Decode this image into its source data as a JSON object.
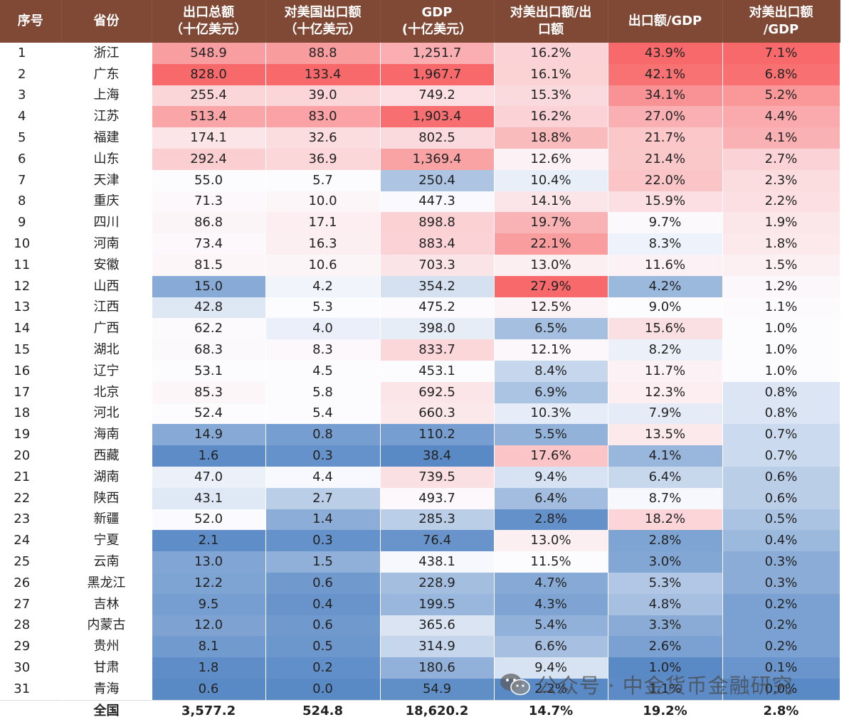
{
  "header": {
    "columns": [
      "序号",
      "省份",
      "出口总额\n（十亿美元）",
      "对美国出口额\n（十亿美元）",
      "GDP\n(十亿美元）",
      "对美出口额/出\n口额",
      "出口额/GDP",
      "对美出口额\n/GDP"
    ],
    "color": "#7f4936"
  },
  "rows": [
    [
      "1",
      "浙江",
      "548.9",
      "88.8",
      "1,251.7",
      "16.2%",
      "43.9%",
      "7.1%"
    ],
    [
      "2",
      "广东",
      "828.0",
      "133.4",
      "1,967.7",
      "16.1%",
      "42.1%",
      "6.8%"
    ],
    [
      "3",
      "上海",
      "255.4",
      "39.0",
      "749.2",
      "15.3%",
      "34.1%",
      "5.2%"
    ],
    [
      "4",
      "江苏",
      "513.4",
      "83.0",
      "1,903.4",
      "16.2%",
      "27.0%",
      "4.4%"
    ],
    [
      "5",
      "福建",
      "174.1",
      "32.6",
      "802.5",
      "18.8%",
      "21.7%",
      "4.1%"
    ],
    [
      "6",
      "山东",
      "292.4",
      "36.9",
      "1,369.4",
      "12.6%",
      "21.4%",
      "2.7%"
    ],
    [
      "7",
      "天津",
      "55.0",
      "5.7",
      "250.4",
      "10.4%",
      "22.0%",
      "2.3%"
    ],
    [
      "8",
      "重庆",
      "71.3",
      "10.0",
      "447.3",
      "14.1%",
      "15.9%",
      "2.2%"
    ],
    [
      "9",
      "四川",
      "86.8",
      "17.1",
      "898.8",
      "19.7%",
      "9.7%",
      "1.9%"
    ],
    [
      "10",
      "河南",
      "73.4",
      "16.3",
      "883.4",
      "22.1%",
      "8.3%",
      "1.8%"
    ],
    [
      "11",
      "安徽",
      "81.5",
      "10.6",
      "703.3",
      "13.0%",
      "11.6%",
      "1.5%"
    ],
    [
      "12",
      "山西",
      "15.0",
      "4.2",
      "354.2",
      "27.9%",
      "4.2%",
      "1.2%"
    ],
    [
      "13",
      "江西",
      "42.8",
      "5.3",
      "475.2",
      "12.5%",
      "9.0%",
      "1.1%"
    ],
    [
      "14",
      "广西",
      "62.2",
      "4.0",
      "398.0",
      "6.5%",
      "15.6%",
      "1.0%"
    ],
    [
      "15",
      "湖北",
      "68.3",
      "8.3",
      "833.7",
      "12.1%",
      "8.2%",
      "1.0%"
    ],
    [
      "16",
      "辽宁",
      "53.1",
      "4.5",
      "453.1",
      "8.4%",
      "11.7%",
      "1.0%"
    ],
    [
      "17",
      "北京",
      "85.3",
      "5.8",
      "692.5",
      "6.9%",
      "12.3%",
      "0.8%"
    ],
    [
      "18",
      "河北",
      "52.4",
      "5.4",
      "660.3",
      "10.3%",
      "7.9%",
      "0.8%"
    ],
    [
      "19",
      "海南",
      "14.9",
      "0.8",
      "110.2",
      "5.5%",
      "13.5%",
      "0.7%"
    ],
    [
      "20",
      "西藏",
      "1.6",
      "0.3",
      "38.4",
      "17.6%",
      "4.1%",
      "0.7%"
    ],
    [
      "21",
      "湖南",
      "47.0",
      "4.4",
      "739.5",
      "9.4%",
      "6.4%",
      "0.6%"
    ],
    [
      "22",
      "陕西",
      "43.1",
      "2.7",
      "493.7",
      "6.4%",
      "8.7%",
      "0.6%"
    ],
    [
      "23",
      "新疆",
      "52.0",
      "1.4",
      "285.3",
      "2.8%",
      "18.2%",
      "0.5%"
    ],
    [
      "24",
      "宁夏",
      "2.1",
      "0.3",
      "76.4",
      "13.0%",
      "2.8%",
      "0.4%"
    ],
    [
      "25",
      "云南",
      "13.0",
      "1.5",
      "438.1",
      "11.5%",
      "3.0%",
      "0.3%"
    ],
    [
      "26",
      "黑龙江",
      "12.2",
      "0.6",
      "228.9",
      "4.7%",
      "5.3%",
      "0.3%"
    ],
    [
      "27",
      "吉林",
      "9.5",
      "0.4",
      "199.5",
      "4.3%",
      "4.8%",
      "0.2%"
    ],
    [
      "28",
      "内蒙古",
      "12.0",
      "0.6",
      "365.6",
      "5.4%",
      "3.3%",
      "0.2%"
    ],
    [
      "29",
      "贵州",
      "8.1",
      "0.5",
      "314.9",
      "6.6%",
      "2.6%",
      "0.2%"
    ],
    [
      "30",
      "甘肃",
      "1.8",
      "0.2",
      "180.6",
      "9.4%",
      "1.0%",
      "0.1%"
    ],
    [
      "31",
      "青海",
      "0.6",
      "0.0",
      "54.9",
      "2.2%",
      "1.1%",
      "0.0%"
    ]
  ],
  "total": [
    "",
    "全国",
    "3,577.2",
    "524.8",
    "18,620.2",
    "14.7%",
    "19.2%",
    "2.8%"
  ],
  "heatmap_colors": {
    "high": "#f8696b",
    "mid": "#fcfcff",
    "low": "#5a8ac6"
  },
  "watermark": {
    "text": "公众号 · 中金货币金融研究",
    "icon": "wechat-icon"
  }
}
